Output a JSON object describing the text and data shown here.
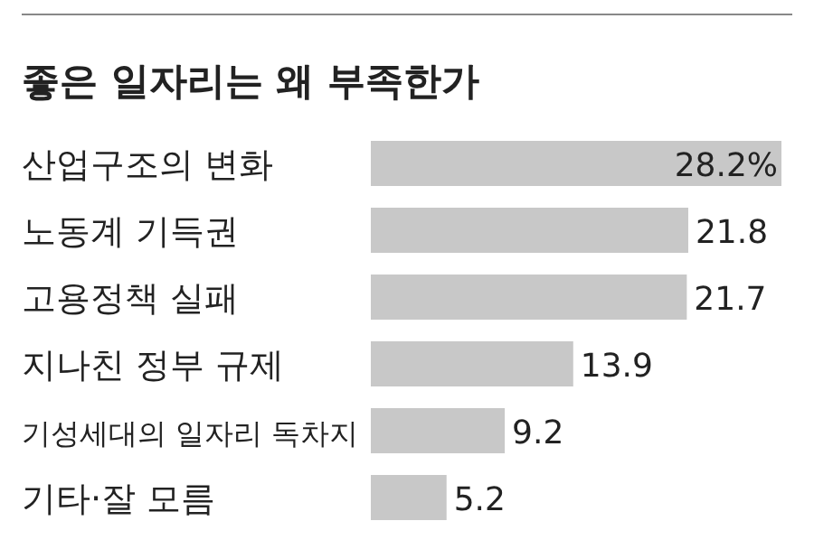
{
  "chart_data": {
    "type": "bar",
    "orientation": "horizontal",
    "title": "좋은 일자리는 왜 부족한가",
    "categories": [
      "산업구조의 변화",
      "노동계 기득권",
      "고용정책 실패",
      "지나친 정부 규제",
      "기성세대의 일자리 독차지",
      "기타·잘 모름"
    ],
    "values": [
      28.2,
      21.8,
      21.7,
      13.9,
      9.2,
      5.2
    ],
    "value_labels": [
      "28.2%",
      "21.8",
      "21.7",
      "13.9",
      "9.2",
      "5.2"
    ],
    "color": "#c8c8c8"
  }
}
